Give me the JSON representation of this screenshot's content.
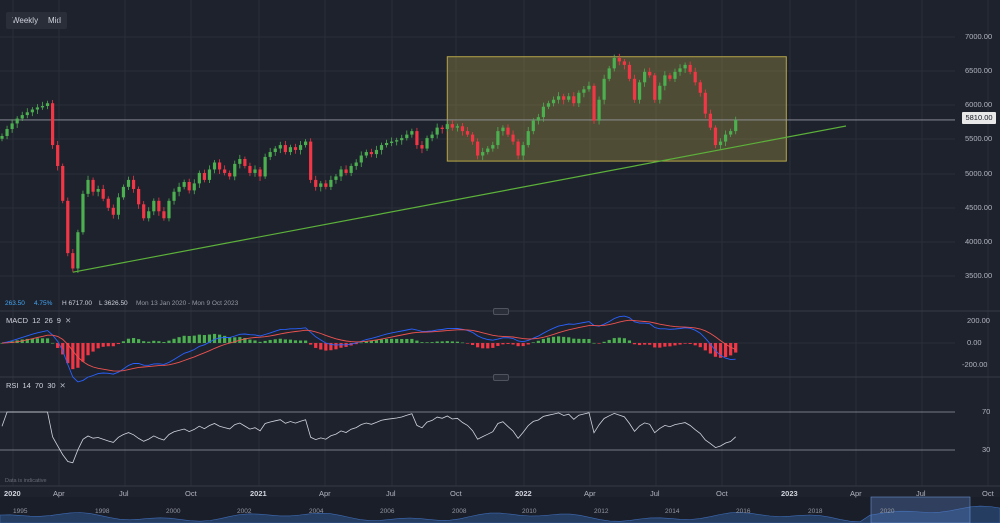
{
  "toolbar": {
    "interval": "Weekly",
    "price_type": "Mid"
  },
  "colors": {
    "up": "#4caf50",
    "down": "#f23645",
    "trend": "#5cb23a",
    "box": "#b8a648",
    "macd": "#2962ff",
    "signal": "#ef5350",
    "rsi": "#d1d4dc"
  },
  "info_bar": {
    "value": "263.50",
    "percent": "4.75%",
    "high": "H 6717.00",
    "low": "L 3626.50",
    "range": "Mon 13 Jan 2020 - Mon 9 Oct 2023"
  },
  "price_axis": {
    "labels": [
      "7000.00",
      "6500.00",
      "6000.00",
      "5500.00",
      "5000.00",
      "4500.00",
      "4000.00",
      "3500.00"
    ],
    "last_price": "5810.00"
  },
  "time_axis": [
    "2020",
    "Apr",
    "Jul",
    "Oct",
    "2021",
    "Apr",
    "Jul",
    "Oct",
    "2022",
    "Apr",
    "Jul",
    "Oct",
    "2023",
    "Apr",
    "Jul",
    "Oct"
  ],
  "macd": {
    "label": "MACD",
    "params": [
      "12",
      "26",
      "9"
    ],
    "axis": [
      "200.00",
      "0.00",
      "-200.00"
    ]
  },
  "rsi": {
    "label": "RSI",
    "params": [
      "14",
      "70",
      "30"
    ],
    "axis": [
      "70",
      "30"
    ]
  },
  "watermark": "Data is indicative",
  "navigator": {
    "years": [
      "1995",
      "1998",
      "2000",
      "2002",
      "2004",
      "2006",
      "2008",
      "2010",
      "2012",
      "2014",
      "2016",
      "2018",
      "2020"
    ]
  },
  "chart_data": {
    "type": "candlestick",
    "interval": "weekly",
    "ylim": [
      3200,
      7100
    ],
    "closes": [
      5580,
      5680,
      5760,
      5830,
      5880,
      5920,
      5960,
      5990,
      6010,
      6050,
      5450,
      5150,
      4650,
      3900,
      3680,
      4200,
      4750,
      4950,
      4780,
      4820,
      4680,
      4550,
      4450,
      4700,
      4850,
      4950,
      4820,
      4600,
      4400,
      4500,
      4650,
      4500,
      4400,
      4650,
      4780,
      4850,
      4920,
      4800,
      4900,
      5050,
      4950,
      5100,
      5200,
      5100,
      5050,
      5000,
      5180,
      5250,
      5150,
      5050,
      5100,
      5000,
      5280,
      5350,
      5400,
      5450,
      5350,
      5420,
      5380,
      5450,
      5500,
      4950,
      4850,
      4900,
      4850,
      4950,
      5000,
      5100,
      5050,
      5150,
      5200,
      5300,
      5350,
      5320,
      5380,
      5450,
      5480,
      5500,
      5520,
      5550,
      5600,
      5650,
      5450,
      5400,
      5550,
      5600,
      5700,
      5680,
      5750,
      5700,
      5720,
      5650,
      5600,
      5500,
      5300,
      5350,
      5400,
      5450,
      5650,
      5700,
      5600,
      5500,
      5300,
      5450,
      5650,
      5800,
      5850,
      6000,
      6050,
      6100,
      6150,
      6100,
      6150,
      6050,
      6200,
      6250,
      6300,
      5800,
      6100,
      6400,
      6550,
      6700,
      6650,
      6600,
      6400,
      6100,
      6350,
      6500,
      6450,
      6100,
      6300,
      6450,
      6400,
      6500,
      6550,
      6600,
      6500,
      6350,
      6200,
      5900,
      5700,
      5450,
      5500,
      5600,
      5650,
      5810
    ],
    "trendline": {
      "start": {
        "week": 14,
        "price": 3626.5
      },
      "end": {
        "week": 220,
        "price": 5700
      }
    },
    "range_box": {
      "top": 6717,
      "bottom": 5220
    },
    "last_price": 5810,
    "high": 6717.0,
    "low": 3626.5,
    "macd_ylim": [
      -250,
      250
    ],
    "rsi_levels": [
      70,
      30
    ]
  }
}
